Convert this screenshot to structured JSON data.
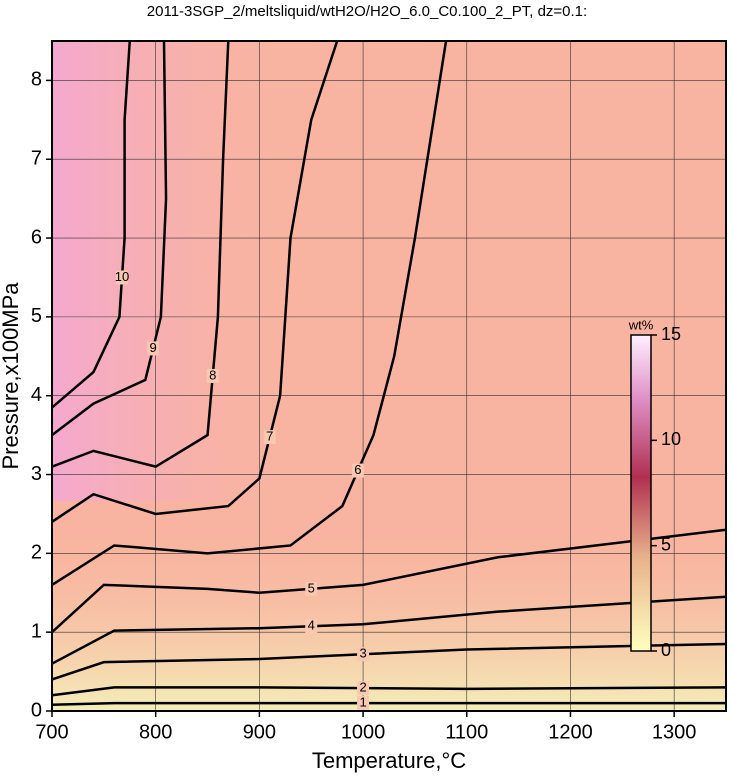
{
  "chart_data": {
    "type": "contour",
    "title": "2011-3SGP_2/meltsliquid/wtH2O/H2O_6.0_C0.100_2_PT, dz=0.1:",
    "x_label": "Temperature,°C",
    "y_label": "Pressure,x100MPa",
    "xlim": [
      700,
      1350
    ],
    "ylim": [
      0,
      8.5
    ],
    "xticks": [
      700,
      800,
      900,
      1000,
      1100,
      1200,
      1300
    ],
    "yticks": [
      0,
      1,
      2,
      3,
      4,
      5,
      6,
      7,
      8
    ],
    "grid": true,
    "contours": [
      {
        "level": 1,
        "x": [
          700,
          760,
          900,
          1100,
          1350
        ],
        "y": [
          0.08,
          0.1,
          0.1,
          0.1,
          0.1
        ]
      },
      {
        "level": 2,
        "x": [
          700,
          760,
          900,
          1100,
          1350
        ],
        "y": [
          0.2,
          0.3,
          0.3,
          0.28,
          0.3
        ]
      },
      {
        "level": 3,
        "x": [
          700,
          750,
          900,
          1100,
          1350
        ],
        "y": [
          0.4,
          0.62,
          0.66,
          0.78,
          0.85
        ]
      },
      {
        "level": 4,
        "x": [
          700,
          760,
          900,
          1000,
          1130,
          1350
        ],
        "y": [
          0.6,
          1.02,
          1.05,
          1.1,
          1.26,
          1.45
        ]
      },
      {
        "level": 5,
        "x": [
          700,
          750,
          850,
          900,
          1000,
          1130,
          1350
        ],
        "y": [
          1.0,
          1.6,
          1.55,
          1.5,
          1.6,
          1.95,
          2.3
        ]
      },
      {
        "level": 6,
        "x": [
          700,
          760,
          850,
          930,
          980,
          1010,
          1030,
          1050,
          1080
        ],
        "y": [
          1.6,
          2.1,
          2.0,
          2.1,
          2.6,
          3.5,
          4.5,
          6.0,
          8.5
        ]
      },
      {
        "level": 7,
        "x": [
          700,
          740,
          800,
          870,
          900,
          920,
          930,
          950,
          975
        ],
        "y": [
          2.4,
          2.75,
          2.5,
          2.6,
          2.95,
          4.0,
          6.0,
          7.5,
          8.5
        ]
      },
      {
        "level": 8,
        "x": [
          700,
          740,
          800,
          850,
          860,
          865,
          870
        ],
        "y": [
          3.1,
          3.3,
          3.1,
          3.5,
          5.0,
          7.0,
          8.5
        ]
      },
      {
        "level": 9,
        "x": [
          700,
          740,
          790,
          805,
          810,
          808
        ],
        "y": [
          3.5,
          3.9,
          4.2,
          5.0,
          6.5,
          8.5
        ]
      },
      {
        "level": 10,
        "x": [
          700,
          740,
          765,
          770,
          770,
          775
        ],
        "y": [
          3.85,
          4.3,
          5.0,
          6.0,
          7.5,
          8.5
        ]
      }
    ],
    "colorbar": {
      "label": "wt%",
      "lim": [
        0,
        15
      ],
      "ticks": [
        0,
        5,
        10,
        15
      ]
    }
  }
}
